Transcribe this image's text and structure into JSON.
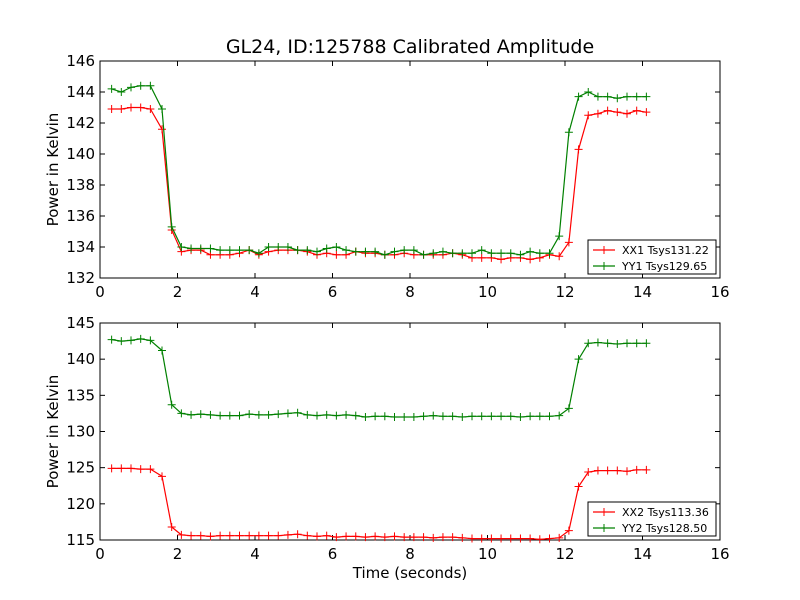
{
  "title": "GL24, ID:125788 Calibrated Amplitude",
  "chart_data": [
    {
      "type": "line",
      "xlabel": "",
      "ylabel": "Power in Kelvin",
      "xlim": [
        0,
        16
      ],
      "ylim": [
        132,
        146
      ],
      "xticks": [
        "0",
        "2",
        "4",
        "6",
        "8",
        "10",
        "12",
        "14",
        "16"
      ],
      "yticks": [
        "132",
        "134",
        "136",
        "138",
        "140",
        "142",
        "144",
        "146"
      ],
      "grid": false,
      "legend": "bottom-right",
      "x": [
        0.3,
        0.55,
        0.8,
        1.05,
        1.3,
        1.6,
        1.85,
        2.1,
        2.35,
        2.6,
        2.85,
        3.1,
        3.35,
        3.6,
        3.85,
        4.1,
        4.35,
        4.6,
        4.85,
        5.1,
        5.35,
        5.6,
        5.85,
        6.1,
        6.35,
        6.6,
        6.85,
        7.1,
        7.35,
        7.6,
        7.85,
        8.1,
        8.35,
        8.6,
        8.85,
        9.1,
        9.35,
        9.6,
        9.85,
        10.1,
        10.35,
        10.6,
        10.85,
        11.1,
        11.35,
        11.6,
        11.85,
        12.1,
        12.35,
        12.6,
        12.85,
        13.1,
        13.35,
        13.6,
        13.85,
        14.1
      ],
      "series": [
        {
          "name": "XX1 Tsys131.22",
          "color": "#ff0000",
          "values": [
            142.9,
            142.9,
            143.0,
            143.0,
            142.9,
            141.6,
            135.1,
            133.7,
            133.8,
            133.8,
            133.5,
            133.5,
            133.5,
            133.6,
            133.8,
            133.5,
            133.7,
            133.8,
            133.8,
            133.8,
            133.7,
            133.5,
            133.6,
            133.5,
            133.5,
            133.7,
            133.6,
            133.6,
            133.5,
            133.5,
            133.6,
            133.5,
            133.5,
            133.5,
            133.5,
            133.6,
            133.5,
            133.3,
            133.3,
            133.3,
            133.2,
            133.3,
            133.3,
            133.2,
            133.3,
            133.5,
            133.4,
            134.3,
            140.3,
            142.5,
            142.6,
            142.8,
            142.7,
            142.6,
            142.8,
            142.7
          ]
        },
        {
          "name": "YY1 Tsys129.65",
          "color": "#008000",
          "values": [
            144.2,
            144.0,
            144.3,
            144.4,
            144.4,
            142.9,
            135.3,
            134.0,
            133.9,
            133.9,
            133.9,
            133.8,
            133.8,
            133.8,
            133.8,
            133.6,
            134.0,
            134.0,
            134.0,
            133.8,
            133.8,
            133.7,
            133.9,
            134.0,
            133.8,
            133.7,
            133.7,
            133.7,
            133.5,
            133.7,
            133.8,
            133.8,
            133.5,
            133.6,
            133.7,
            133.6,
            133.6,
            133.6,
            133.8,
            133.6,
            133.6,
            133.6,
            133.5,
            133.7,
            133.6,
            133.6,
            134.7,
            141.4,
            143.7,
            144.0,
            143.7,
            143.7,
            143.6,
            143.7,
            143.7,
            143.7
          ]
        }
      ]
    },
    {
      "type": "line",
      "xlabel": "Time (seconds)",
      "ylabel": "Power in Kelvin",
      "xlim": [
        0,
        16
      ],
      "ylim": [
        115,
        145
      ],
      "xticks": [
        "0",
        "2",
        "4",
        "6",
        "8",
        "10",
        "12",
        "14",
        "16"
      ],
      "yticks": [
        "115",
        "120",
        "125",
        "130",
        "135",
        "140",
        "145"
      ],
      "grid": false,
      "legend": "bottom-right",
      "x": [
        0.3,
        0.55,
        0.8,
        1.05,
        1.3,
        1.6,
        1.85,
        2.1,
        2.35,
        2.6,
        2.85,
        3.1,
        3.35,
        3.6,
        3.85,
        4.1,
        4.35,
        4.6,
        4.85,
        5.1,
        5.35,
        5.6,
        5.85,
        6.1,
        6.35,
        6.6,
        6.85,
        7.1,
        7.35,
        7.6,
        7.85,
        8.1,
        8.35,
        8.6,
        8.85,
        9.1,
        9.35,
        9.6,
        9.85,
        10.1,
        10.35,
        10.6,
        10.85,
        11.1,
        11.35,
        11.6,
        11.85,
        12.1,
        12.35,
        12.6,
        12.85,
        13.1,
        13.35,
        13.6,
        13.85,
        14.1
      ],
      "series": [
        {
          "name": "XX2 Tsys113.36",
          "color": "#ff0000",
          "values": [
            124.9,
            124.9,
            124.9,
            124.8,
            124.8,
            123.8,
            116.8,
            115.7,
            115.6,
            115.6,
            115.5,
            115.6,
            115.6,
            115.6,
            115.6,
            115.6,
            115.6,
            115.6,
            115.7,
            115.8,
            115.6,
            115.5,
            115.6,
            115.4,
            115.5,
            115.5,
            115.4,
            115.5,
            115.4,
            115.5,
            115.4,
            115.4,
            115.4,
            115.3,
            115.4,
            115.4,
            115.3,
            115.2,
            115.2,
            115.2,
            115.2,
            115.2,
            115.2,
            115.2,
            115.1,
            115.2,
            115.3,
            116.3,
            122.4,
            124.4,
            124.6,
            124.6,
            124.6,
            124.5,
            124.7,
            124.7
          ]
        },
        {
          "name": "YY2 Tsys128.50",
          "color": "#008000",
          "values": [
            142.7,
            142.5,
            142.6,
            142.8,
            142.6,
            141.2,
            133.7,
            132.5,
            132.3,
            132.4,
            132.3,
            132.2,
            132.2,
            132.2,
            132.4,
            132.3,
            132.3,
            132.4,
            132.5,
            132.6,
            132.3,
            132.2,
            132.3,
            132.2,
            132.3,
            132.2,
            132.0,
            132.1,
            132.1,
            132.0,
            132.0,
            132.0,
            132.1,
            132.2,
            132.1,
            132.1,
            132.0,
            132.1,
            132.1,
            132.1,
            132.1,
            132.1,
            132.0,
            132.1,
            132.1,
            132.1,
            132.2,
            133.2,
            140.0,
            142.2,
            142.3,
            142.2,
            142.1,
            142.2,
            142.2,
            142.2
          ]
        }
      ]
    }
  ]
}
